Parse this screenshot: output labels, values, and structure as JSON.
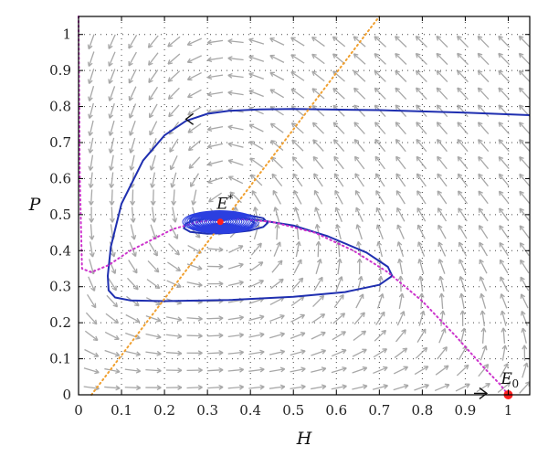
{
  "chart_data": {
    "type": "line",
    "title": "",
    "xlabel": "H",
    "ylabel": "P",
    "xlim": [
      0,
      1.05
    ],
    "ylim": [
      0,
      1.05
    ],
    "grid": true,
    "grid_style": "dotted",
    "x_ticks": [
      0,
      0.1,
      0.2,
      0.3,
      0.4,
      0.5,
      0.6,
      0.7,
      0.8,
      0.9,
      1
    ],
    "x_tick_labels": [
      "0",
      "0.1",
      "0.2",
      "0.3",
      "0.4",
      "0.5",
      "0.6",
      "0.7",
      "0.8",
      "0.9",
      "1"
    ],
    "y_ticks": [
      0,
      0.1,
      0.2,
      0.3,
      0.4,
      0.5,
      0.6,
      0.7,
      0.8,
      0.9,
      1
    ],
    "y_tick_labels": [
      "0",
      "0.1",
      "0.2",
      "0.3",
      "0.4",
      "0.5",
      "0.6",
      "0.7",
      "0.8",
      "0.9",
      "1"
    ],
    "colors": {
      "trajectory": "#1f2fb0",
      "spiral": "#2b3fe0",
      "h_nullcline": "#cc33cc",
      "p_nullcline": "#f0a030",
      "vector_field": "#a8a8a8",
      "equilibrium": "#ff2020"
    },
    "equilibria": [
      {
        "label": "E",
        "superscript": "*",
        "x": 0.33,
        "y": 0.48
      },
      {
        "label": "E",
        "subscript": "0",
        "x": 1.0,
        "y": 0.0
      }
    ],
    "series": [
      {
        "style": "solid",
        "color": "#1f2fb0",
        "x": [
          1.05,
          0.9,
          0.7,
          0.5,
          0.42,
          0.35,
          0.3,
          0.25,
          0.2,
          0.15,
          0.1,
          0.075,
          0.068,
          0.07,
          0.085,
          0.12,
          0.2,
          0.35,
          0.5,
          0.62,
          0.7,
          0.73,
          0.72,
          0.67,
          0.58,
          0.5,
          0.42,
          0.36,
          0.31,
          0.27,
          0.25,
          0.245,
          0.26,
          0.3,
          0.35,
          0.4,
          0.43,
          0.44,
          0.43,
          0.39,
          0.34,
          0.3,
          0.27,
          0.26,
          0.268,
          0.29,
          0.33,
          0.37,
          0.4,
          0.41,
          0.395,
          0.36,
          0.32,
          0.29,
          0.28
        ],
        "y": [
          0.776,
          0.783,
          0.79,
          0.793,
          0.792,
          0.788,
          0.78,
          0.76,
          0.72,
          0.65,
          0.53,
          0.41,
          0.33,
          0.29,
          0.27,
          0.262,
          0.26,
          0.263,
          0.272,
          0.285,
          0.305,
          0.33,
          0.355,
          0.395,
          0.44,
          0.47,
          0.485,
          0.49,
          0.49,
          0.485,
          0.475,
          0.462,
          0.452,
          0.447,
          0.449,
          0.456,
          0.466,
          0.477,
          0.49,
          0.5,
          0.506,
          0.505,
          0.497,
          0.487,
          0.472,
          0.461,
          0.455,
          0.457,
          0.465,
          0.477,
          0.489,
          0.496,
          0.496,
          0.49,
          0.48
        ]
      },
      {
        "style": "dotted",
        "color": "#cc33cc",
        "x": [
          0.0,
          0.003,
          0.008,
          0.03,
          0.07,
          0.12,
          0.17,
          0.22,
          0.28,
          0.35,
          0.45,
          0.55,
          0.64,
          0.72,
          0.8,
          0.88,
          0.94,
          0.98,
          1.0
        ],
        "y": [
          1.05,
          0.6,
          0.35,
          0.34,
          0.36,
          0.4,
          0.43,
          0.46,
          0.48,
          0.49,
          0.48,
          0.45,
          0.4,
          0.34,
          0.26,
          0.16,
          0.08,
          0.03,
          0.0
        ]
      },
      {
        "style": "dotted",
        "color": "#f0a030",
        "x": [
          0.03,
          0.7
        ],
        "y": [
          0.0,
          1.05
        ]
      },
      {
        "style": "solid",
        "color": "#2b3fe0",
        "role": "spiral",
        "center": [
          0.33,
          0.48
        ],
        "rx_range": [
          0.01,
          0.09
        ],
        "ry_range": [
          0.004,
          0.032
        ],
        "turns": 16
      }
    ],
    "arrows": [
      {
        "x": 0.25,
        "y": 0.765,
        "direction": "left"
      },
      {
        "x": 0.95,
        "y": 0.004,
        "direction": "right"
      }
    ]
  }
}
